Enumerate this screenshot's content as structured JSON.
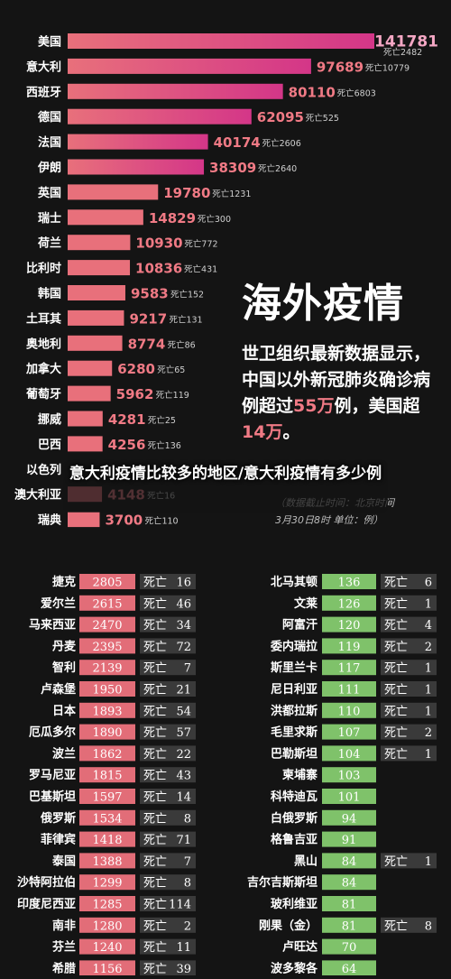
{
  "headline": "海外疫情",
  "paragraph": {
    "part1": "世卫组织最新数据显示，中国以外新冠肺炎确诊病例超过",
    "num1": "55万",
    "part2": "例，美国超",
    "num2": "14万",
    "part3": "。"
  },
  "note": {
    "line1": "（数据截止时间：北京时间",
    "line2": "3月30日8时  单位：例）"
  },
  "overlay_caption": "意大利疫情比较多的地区/意大利疫情有多少例",
  "death_prefix": "死亡",
  "chart_data": [
    {
      "type": "bar",
      "unit": "例",
      "categories": [
        "美国",
        "意大利",
        "西班牙",
        "德国",
        "法国",
        "伊朗",
        "英国",
        "瑞士",
        "荷兰",
        "比利时",
        "韩国",
        "土耳其",
        "奥地利",
        "加拿大",
        "葡萄牙",
        "挪威",
        "巴西",
        "以色列",
        "澳大利亚",
        "瑞典"
      ],
      "values": [
        141781,
        97689,
        80110,
        62095,
        40174,
        38309,
        19780,
        14829,
        10930,
        10836,
        9583,
        9217,
        8774,
        6280,
        5962,
        4281,
        4256,
        null,
        4148,
        3700
      ],
      "deaths": [
        2482,
        10779,
        6803,
        525,
        2606,
        2640,
        1231,
        300,
        772,
        431,
        152,
        131,
        86,
        65,
        119,
        25,
        136,
        null,
        16,
        110
      ]
    },
    {
      "type": "table",
      "categories": [
        "捷克",
        "爱尔兰",
        "马来西亚",
        "丹麦",
        "智利",
        "卢森堡",
        "日本",
        "厄瓜多尔",
        "波兰",
        "罗马尼亚",
        "巴基斯坦",
        "俄罗斯",
        "菲律宾",
        "泰国",
        "沙特阿拉伯",
        "印度尼西亚",
        "南非",
        "芬兰",
        "希腊"
      ],
      "values": [
        2805,
        2615,
        2470,
        2395,
        2139,
        1950,
        1893,
        1890,
        1862,
        1815,
        1597,
        1534,
        1418,
        1388,
        1299,
        1285,
        1280,
        1240,
        1156
      ],
      "deaths": [
        16,
        46,
        34,
        72,
        7,
        21,
        54,
        57,
        22,
        43,
        14,
        8,
        71,
        7,
        8,
        114,
        2,
        11,
        39
      ]
    },
    {
      "type": "table",
      "categories": [
        "北马其顿",
        "文莱",
        "阿富汗",
        "委内瑞拉",
        "斯里兰卡",
        "尼日利亚",
        "洪都拉斯",
        "毛里求斯",
        "巴勒斯坦",
        "柬埔寨",
        "科特迪瓦",
        "白俄罗斯",
        "格鲁吉亚",
        "黑山",
        "吉尔吉斯斯坦",
        "玻利维亚",
        "刚果（金）",
        "卢旺达",
        "波多黎各"
      ],
      "values": [
        136,
        126,
        120,
        119,
        117,
        111,
        110,
        107,
        104,
        103,
        101,
        94,
        91,
        84,
        84,
        81,
        81,
        70,
        64
      ],
      "deaths": [
        6,
        1,
        4,
        2,
        1,
        1,
        1,
        2,
        1,
        null,
        null,
        null,
        null,
        1,
        null,
        null,
        8,
        null,
        null
      ]
    }
  ]
}
